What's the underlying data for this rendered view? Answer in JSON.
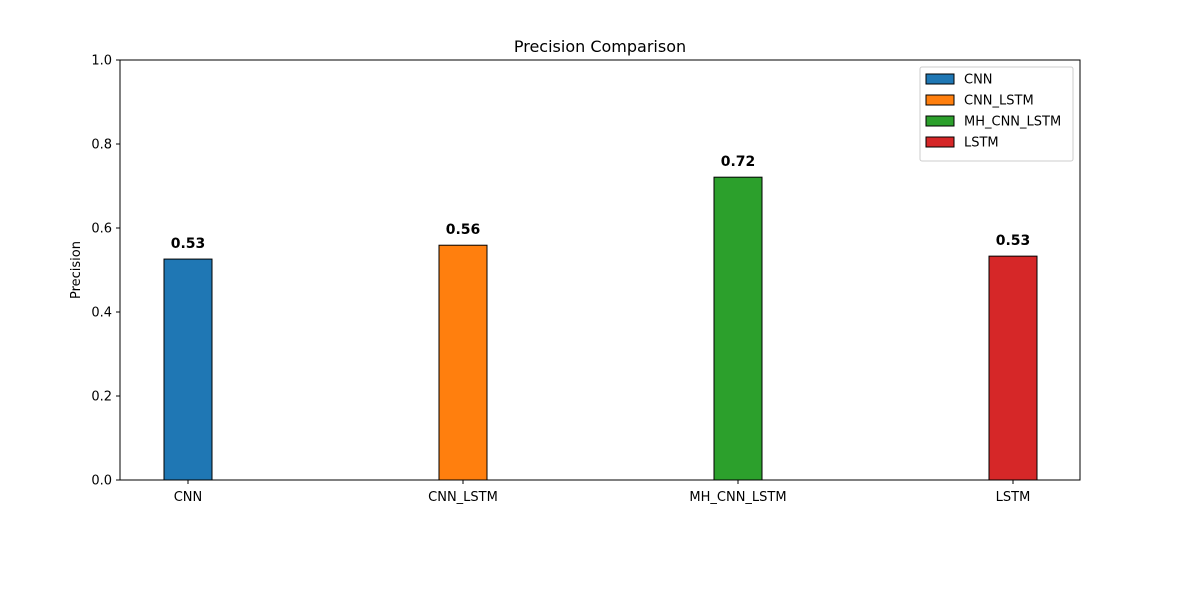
{
  "chart_data": {
    "type": "bar",
    "title": "Precision Comparison",
    "xlabel": "",
    "ylabel": "Precision",
    "ylim": [
      0,
      1.0
    ],
    "yticks": [
      "0.0",
      "0.2",
      "0.4",
      "0.6",
      "0.8",
      "1.0"
    ],
    "categories": [
      "CNN",
      "CNN_LSTM",
      "MH_CNN_LSTM",
      "LSTM"
    ],
    "values": [
      0.526,
      0.559,
      0.721,
      0.533
    ],
    "value_labels": [
      "0.53",
      "0.56",
      "0.72",
      "0.53"
    ],
    "colors": [
      "#1f77b4",
      "#ff7f0e",
      "#2ca02c",
      "#d62728"
    ],
    "grid": false,
    "legend": {
      "placement": "top-right",
      "entries": [
        "CNN",
        "CNN_LSTM",
        "MH_CNN_LSTM",
        "LSTM"
      ]
    }
  }
}
